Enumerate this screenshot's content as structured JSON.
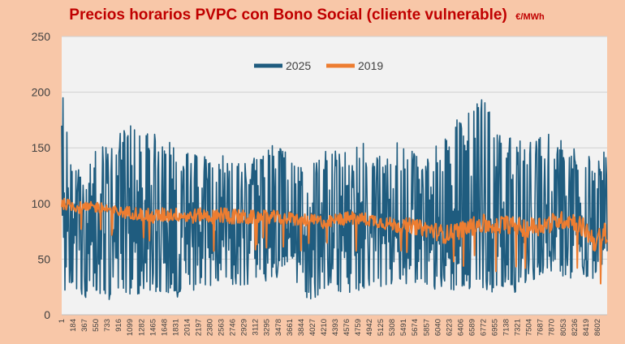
{
  "chart_data": {
    "type": "line",
    "title": "Precios horarios PVPC con Bono Social (cliente vulnerable)",
    "title_unit": "€/MWh",
    "xlabel": "",
    "ylabel": "",
    "ylim": [
      0,
      250
    ],
    "yticks": [
      "0",
      "50",
      "100",
      "150",
      "200",
      "250"
    ],
    "xlim": [
      1,
      8760
    ],
    "x_tick_labels": [
      "1",
      "184",
      "367",
      "550",
      "733",
      "916",
      "1099",
      "1282",
      "1465",
      "1648",
      "1831",
      "2014",
      "2197",
      "2380",
      "2563",
      "2746",
      "2929",
      "3112",
      "3295",
      "3478",
      "3661",
      "3844",
      "4027",
      "4210",
      "4393",
      "4576",
      "4759",
      "4942",
      "5125",
      "5308",
      "5491",
      "5674",
      "5857",
      "6040",
      "6223",
      "6406",
      "6589",
      "6772",
      "6955",
      "7138",
      "7321",
      "7504",
      "7687",
      "7870",
      "8053",
      "8236",
      "8419",
      "8602"
    ],
    "grid": true,
    "legend_position": "top-center",
    "colors": {
      "s2025": "#1f5c7f",
      "s2019": "#ed7d31",
      "title": "#c00000",
      "background": "#f8c7a8",
      "plot": "#f2f2f2"
    },
    "series": [
      {
        "name": "2025",
        "sample_step": 183,
        "high": [
          212,
          140,
          130,
          155,
          150,
          165,
          180,
          160,
          175,
          165,
          150,
          150,
          150,
          140,
          145,
          140,
          145,
          150,
          155,
          150,
          140,
          130,
          140,
          155,
          150,
          150,
          160,
          140,
          150,
          160,
          150,
          140,
          160,
          160,
          190,
          180,
          200,
          185,
          175,
          160,
          155,
          160,
          165,
          160,
          155,
          160,
          130,
          160
        ],
        "low": [
          12,
          25,
          15,
          20,
          12,
          18,
          15,
          20,
          20,
          15,
          15,
          20,
          20,
          25,
          30,
          25,
          25,
          30,
          30,
          30,
          30,
          15,
          12,
          25,
          20,
          20,
          20,
          25,
          20,
          25,
          25,
          20,
          20,
          25,
          20,
          20,
          25,
          20,
          25,
          20,
          25,
          30,
          40,
          30,
          30,
          35,
          30,
          40
        ],
        "mid": [
          90,
          85,
          75,
          70,
          70,
          72,
          75,
          75,
          75,
          70,
          70,
          72,
          72,
          70,
          72,
          72,
          70,
          72,
          75,
          72,
          72,
          68,
          66,
          72,
          72,
          72,
          75,
          75,
          72,
          72,
          72,
          72,
          72,
          70,
          75,
          80,
          85,
          80,
          80,
          80,
          78,
          80,
          80,
          78,
          76,
          72,
          65,
          75
        ]
      },
      {
        "name": "2019",
        "sample_step": 183,
        "values": [
          100,
          98,
          95,
          97,
          95,
          92,
          92,
          90,
          88,
          90,
          90,
          88,
          90,
          88,
          90,
          88,
          87,
          88,
          88,
          87,
          86,
          85,
          84,
          83,
          86,
          87,
          86,
          85,
          82,
          80,
          80,
          78,
          76,
          72,
          75,
          78,
          82,
          80,
          82,
          80,
          78,
          80,
          82,
          85,
          85,
          78,
          65,
          75
        ],
        "range": [
          10,
          10,
          12,
          10,
          10,
          10,
          12,
          12,
          14,
          14,
          12,
          14,
          12,
          14,
          16,
          14,
          14,
          12,
          12,
          12,
          12,
          12,
          12,
          12,
          12,
          12,
          12,
          12,
          12,
          14,
          14,
          14,
          16,
          16,
          16,
          16,
          18,
          18,
          16,
          16,
          18,
          18,
          18,
          16,
          16,
          18,
          20,
          20
        ]
      }
    ]
  }
}
